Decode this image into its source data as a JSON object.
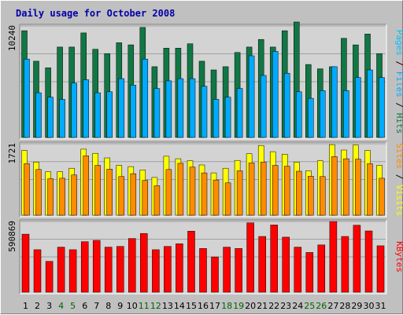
{
  "title": "Daily usage for October 2008",
  "colors": {
    "hits": "#117744",
    "files": "#00aaff",
    "pages": "#00bfff",
    "visits": "#ffff00",
    "sites": "#ff8c00",
    "kbytes": "#ff0000",
    "title": "#0000a8",
    "weekend": "#006400",
    "background": "#c0c0c0",
    "panel": "#d3d3d3",
    "grid": "#a0a0a0"
  },
  "chart_data": {
    "type": "bar",
    "categories": [
      "1",
      "2",
      "3",
      "4",
      "5",
      "6",
      "7",
      "8",
      "9",
      "10",
      "11",
      "12",
      "13",
      "14",
      "15",
      "16",
      "17",
      "18",
      "19",
      "20",
      "21",
      "22",
      "23",
      "24",
      "25",
      "26",
      "27",
      "28",
      "29",
      "30",
      "31"
    ],
    "weekend_days": [
      "4",
      "5",
      "11",
      "12",
      "18",
      "19",
      "25",
      "26"
    ],
    "panels": [
      {
        "id": "hits-files-pages",
        "ylim": [
          0,
          10240
        ],
        "max_label": "10240",
        "labels": [
          {
            "text": "Pages",
            "color": "#00bfff"
          },
          {
            "text": " / ",
            "color": "#000000"
          },
          {
            "text": "Files",
            "color": "#00aaff"
          },
          {
            "text": " / ",
            "color": "#000000"
          },
          {
            "text": "Hits",
            "color": "#117744"
          }
        ],
        "series": [
          {
            "name": "Hits",
            "color": "#117744",
            "values": [
              9800,
              7000,
              6400,
              8300,
              8300,
              9600,
              8100,
              7700,
              8700,
              8500,
              10100,
              6500,
              8200,
              8200,
              8600,
              7000,
              6200,
              6500,
              7800,
              8300,
              9000,
              8300,
              9800,
              10600,
              6700,
              6300,
              6500,
              9100,
              8500,
              9500,
              7700
            ]
          },
          {
            "name": "Files",
            "color": "#00aaff",
            "values": [
              7200,
              4100,
              3700,
              3500,
              5000,
              5300,
              4100,
              4200,
              5400,
              4800,
              7200,
              4500,
              5200,
              5400,
              5400,
              4700,
              3500,
              3700,
              4500,
              7500,
              5700,
              7900,
              5900,
              4200,
              3600,
              4300,
              6500,
              4300,
              5500,
              6200,
              5500
            ]
          }
        ]
      },
      {
        "id": "visits-sites",
        "ylim": [
          0,
          1721
        ],
        "max_label": "1721",
        "labels": [
          {
            "text": "Sites",
            "color": "#ff8c00"
          },
          {
            "text": " / ",
            "color": "#000000"
          },
          {
            "text": "Visits",
            "color": "#ffff00"
          }
        ],
        "series": [
          {
            "name": "Visits",
            "color": "#ffff00",
            "values": [
              1560,
              1280,
              1050,
              1050,
              1130,
              1590,
              1490,
              1380,
              1200,
              1170,
              1090,
              910,
              1420,
              1360,
              1310,
              1210,
              1020,
              1130,
              1320,
              1480,
              1680,
              1530,
              1470,
              1280,
              1070,
              1310,
              1700,
              1570,
              1690,
              1560,
              1200
            ]
          },
          {
            "name": "Sites",
            "color": "#ff8c00",
            "values": [
              1240,
              1100,
              880,
              890,
              970,
              1430,
              1200,
              1110,
              930,
              1000,
              840,
              710,
              1100,
              1250,
              1160,
              1020,
              850,
              780,
              1070,
              1260,
              1280,
              1200,
              1180,
              1060,
              940,
              930,
              1410,
              1360,
              1350,
              1240,
              890
            ]
          }
        ]
      },
      {
        "id": "kbytes",
        "ylim": [
          0,
          590869
        ],
        "max_label": "590869",
        "labels": [
          {
            "text": "KBytes",
            "color": "#ff0000"
          }
        ],
        "series": [
          {
            "name": "KBytes",
            "color": "#ff0000",
            "values": [
              485000,
              355000,
              258000,
              377000,
              355000,
              422000,
              433000,
              377000,
              383000,
              449000,
              491000,
              355000,
              383000,
              405000,
              510000,
              366000,
              295000,
              377000,
              366000,
              580000,
              466000,
              562000,
              460000,
              377000,
              332000,
              395000,
              590869,
              466000,
              560000,
              512000,
              388000
            ]
          }
        ]
      }
    ]
  }
}
